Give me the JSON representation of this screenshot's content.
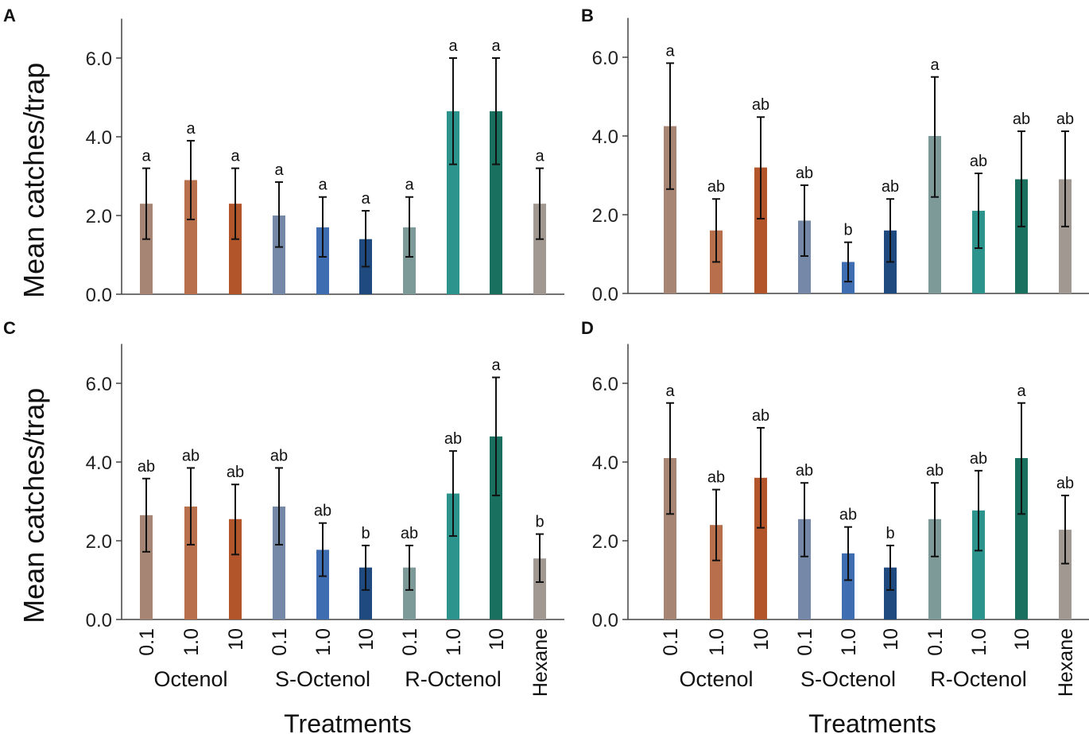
{
  "chart_data": [
    {
      "panel": "A",
      "type": "bar",
      "ylabel": "Mean catches/trap",
      "ylim": [
        0,
        7
      ],
      "yticks": [
        "0.0",
        "2.0",
        "4.0",
        "6.0"
      ],
      "values": [
        2.3,
        2.9,
        2.3,
        2.0,
        1.7,
        1.4,
        1.7,
        4.65,
        4.65,
        2.3
      ],
      "err_low": [
        1.4,
        1.9,
        1.4,
        1.2,
        0.95,
        0.7,
        0.95,
        3.3,
        3.3,
        1.4
      ],
      "err_high": [
        3.2,
        3.9,
        3.2,
        2.85,
        2.47,
        2.12,
        2.47,
        6.0,
        6.0,
        3.2
      ],
      "letters": [
        "a",
        "a",
        "a",
        "a",
        "a",
        "a",
        "a",
        "a",
        "a",
        "a"
      ]
    },
    {
      "panel": "B",
      "type": "bar",
      "ylabel": "",
      "ylim": [
        0,
        7
      ],
      "yticks": [
        "0.0",
        "2.0",
        "4.0",
        "6.0"
      ],
      "values": [
        4.25,
        1.6,
        3.2,
        1.85,
        0.8,
        1.6,
        4.0,
        2.1,
        2.9,
        2.9
      ],
      "err_low": [
        2.65,
        0.8,
        1.9,
        0.95,
        0.3,
        0.8,
        2.45,
        1.15,
        1.7,
        1.7
      ],
      "err_high": [
        5.85,
        2.4,
        4.48,
        2.75,
        1.3,
        2.4,
        5.5,
        3.05,
        4.12,
        4.12
      ],
      "letters": [
        "a",
        "ab",
        "ab",
        "ab",
        "b",
        "ab",
        "a",
        "ab",
        "ab",
        "ab"
      ]
    },
    {
      "panel": "C",
      "type": "bar",
      "ylabel": "Mean catches/trap",
      "ylim": [
        0,
        7
      ],
      "yticks": [
        "0.0",
        "2.0",
        "4.0",
        "6.0"
      ],
      "values": [
        2.65,
        2.87,
        2.55,
        2.87,
        1.77,
        1.32,
        1.32,
        3.2,
        4.65,
        1.55
      ],
      "err_low": [
        1.72,
        1.9,
        1.65,
        1.9,
        1.1,
        0.75,
        0.75,
        2.12,
        3.15,
        0.95
      ],
      "err_high": [
        3.58,
        3.85,
        3.43,
        3.85,
        2.45,
        1.88,
        1.88,
        4.28,
        6.15,
        2.17
      ],
      "letters": [
        "ab",
        "ab",
        "ab",
        "ab",
        "ab",
        "b",
        "ab",
        "ab",
        "a",
        "b"
      ]
    },
    {
      "panel": "D",
      "type": "bar",
      "ylabel": "",
      "ylim": [
        0,
        7
      ],
      "yticks": [
        "0.0",
        "2.0",
        "4.0",
        "6.0"
      ],
      "values": [
        4.1,
        2.4,
        3.6,
        2.55,
        1.68,
        1.32,
        2.55,
        2.77,
        4.1,
        2.28
      ],
      "err_low": [
        2.68,
        1.5,
        2.33,
        1.6,
        1.0,
        0.75,
        1.6,
        1.75,
        2.68,
        1.42
      ],
      "err_high": [
        5.5,
        3.3,
        4.87,
        3.47,
        2.35,
        1.88,
        3.47,
        3.78,
        5.5,
        3.15
      ],
      "letters": [
        "a",
        "ab",
        "ab",
        "ab",
        "ab",
        "b",
        "ab",
        "ab",
        "a",
        "ab"
      ]
    }
  ],
  "x_axis": {
    "tick_labels": [
      "0.1",
      "1.0",
      "10",
      "0.1",
      "1.0",
      "10",
      "0.1",
      "1.0",
      "10",
      "Hexane"
    ],
    "groups": [
      "Octenol",
      "S-Octenol",
      "R-Octenol"
    ],
    "xlabel": "Treatments"
  },
  "bar_colors": [
    "#a68574",
    "#b76f4c",
    "#b3552a",
    "#7588a8",
    "#3f6db1",
    "#1f4a80",
    "#7d9a98",
    "#2c948d",
    "#19705f",
    "#a09891"
  ]
}
